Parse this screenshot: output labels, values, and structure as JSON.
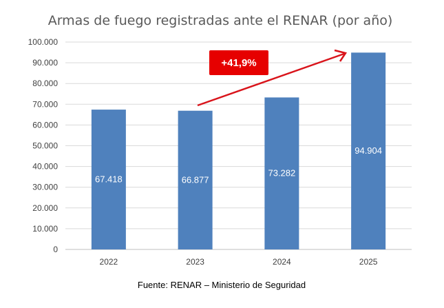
{
  "chart_data": {
    "type": "bar",
    "title": "Armas de fuego registradas ante el RENAR (por año)",
    "categories": [
      "2022",
      "2023",
      "2024",
      "2025"
    ],
    "values": [
      67418,
      66877,
      73282,
      94904
    ],
    "data_labels": [
      "67.418",
      "66.877",
      "73.282",
      "94.904"
    ],
    "ylim": [
      0,
      100000
    ],
    "yticks": [
      "0",
      "10.000",
      "20.000",
      "30.000",
      "40.000",
      "50.000",
      "60.000",
      "70.000",
      "80.000",
      "90.000",
      "100.000"
    ],
    "grid": true,
    "bar_color": "#4f81bd",
    "annotation": {
      "text": "+41,9%",
      "color": "#e60000",
      "arrow_color": "#d9141b"
    },
    "source": "Fuente: RENAR – Ministerio de Seguridad"
  }
}
